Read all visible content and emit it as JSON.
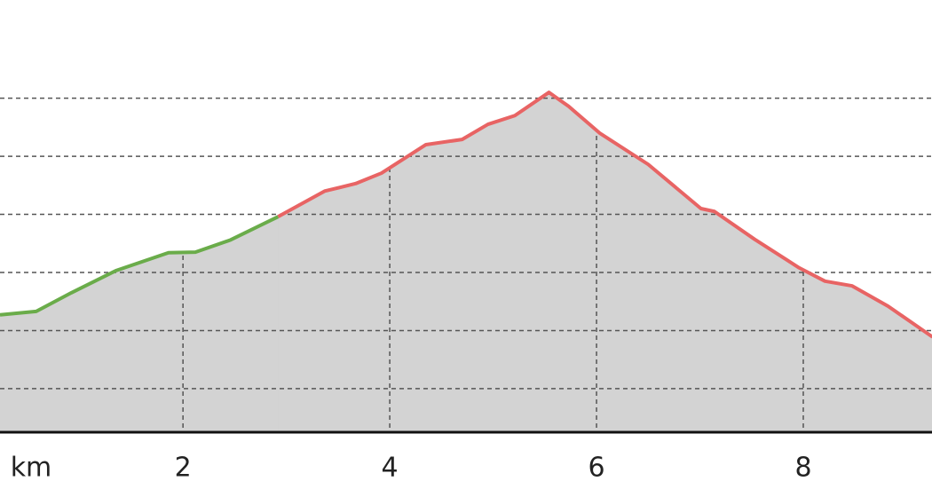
{
  "chart_data": {
    "type": "area-line",
    "x_label": "km",
    "xlim": [
      0.23,
      9.245
    ],
    "xticks": [
      2,
      4,
      6,
      8
    ],
    "ylim": [
      0.25,
      7.69
    ],
    "ygrid": [
      1,
      2,
      3,
      4,
      5,
      6
    ],
    "area_color": "#d3d3d3",
    "series": [
      {
        "color": "#6aac4a",
        "x": [
          0.23,
          0.58,
          0.92,
          1.35,
          1.86,
          2.12,
          2.46,
          2.92
        ],
        "values": [
          2.27,
          2.33,
          2.65,
          3.03,
          3.34,
          3.35,
          3.56,
          3.96
        ]
      },
      {
        "color": "#e86464",
        "x": [
          2.92,
          3.37,
          3.67,
          3.92,
          4.35,
          4.7,
          4.95,
          5.21,
          5.54,
          5.73,
          6.03,
          6.5,
          7.01,
          7.14,
          7.53,
          7.96,
          8.21,
          8.47,
          8.82,
          9.25
        ],
        "values": [
          3.96,
          4.4,
          4.53,
          4.71,
          5.2,
          5.29,
          5.55,
          5.7,
          6.1,
          5.86,
          5.4,
          4.86,
          4.1,
          4.05,
          3.57,
          3.08,
          2.85,
          2.77,
          2.42,
          1.89
        ]
      }
    ]
  }
}
